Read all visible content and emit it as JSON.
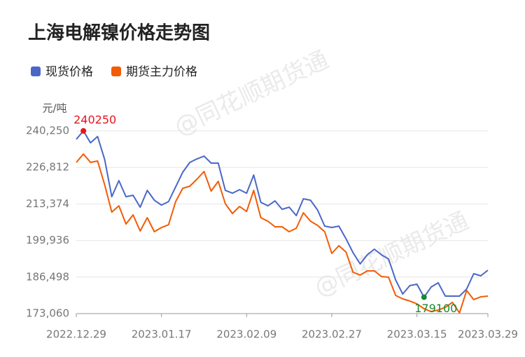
{
  "chart_data": {
    "type": "line",
    "title": "上海电解镍价格走势图",
    "y_unit": "元/吨",
    "watermark": "@同花顺期货通",
    "categories": [
      "2022.12.29",
      null,
      null,
      null,
      null,
      null,
      null,
      null,
      null,
      null,
      null,
      null,
      "2023.01.17",
      null,
      null,
      null,
      null,
      null,
      null,
      null,
      null,
      null,
      null,
      null,
      "2023.02.09",
      null,
      null,
      null,
      null,
      null,
      null,
      null,
      null,
      null,
      null,
      null,
      "2023.02.27",
      null,
      null,
      null,
      null,
      null,
      null,
      null,
      null,
      null,
      null,
      null,
      "2023.03.15",
      null,
      null,
      null,
      null,
      null,
      null,
      null,
      null,
      null,
      "2023.03.29"
    ],
    "series": [
      {
        "name": "现货价格",
        "color": "#4a67c8",
        "values": [
          237160,
          240250,
          235870,
          238190,
          229700,
          216050,
          221970,
          216050,
          216570,
          212190,
          218370,
          214760,
          212960,
          214250,
          219660,
          225060,
          228670,
          229950,
          230980,
          228410,
          228410,
          218370,
          217340,
          218630,
          217340,
          224030,
          213990,
          212700,
          214510,
          211420,
          212190,
          209100,
          215280,
          214760,
          211160,
          205240,
          204720,
          205240,
          200610,
          195460,
          191340,
          194680,
          196740,
          194680,
          193140,
          185420,
          180260,
          183360,
          183870,
          179100,
          182840,
          184390,
          179490,
          179490,
          179490,
          182070,
          187730,
          186960,
          189020
        ]
      },
      {
        "name": "期货主力价格",
        "color": "#f25c05",
        "values": [
          228670,
          231750,
          228670,
          229180,
          220430,
          210390,
          212700,
          206010,
          209360,
          203440,
          208330,
          203180,
          204720,
          205750,
          214250,
          219140,
          219910,
          222490,
          225320,
          218110,
          221710,
          213480,
          209870,
          212450,
          210640,
          218370,
          208330,
          207040,
          204980,
          204980,
          203180,
          204470,
          210130,
          207040,
          205500,
          203180,
          195200,
          198030,
          195720,
          188250,
          187220,
          188770,
          188770,
          186700,
          186450,
          179750,
          178460,
          177690,
          176660,
          174860,
          173830,
          174350,
          175370,
          177180,
          173320,
          181550,
          178210,
          179230,
          179490
        ]
      }
    ],
    "ylim": [
      173060,
      240250
    ],
    "yticks": [
      {
        "value": 173060,
        "label": "173,060"
      },
      {
        "value": 186498,
        "label": "186,498"
      },
      {
        "value": 199936,
        "label": "199,936"
      },
      {
        "value": 213374,
        "label": "213,374"
      },
      {
        "value": 226812,
        "label": "226,812"
      },
      {
        "value": 240250,
        "label": "240,250"
      }
    ],
    "grid": true,
    "max_color": "#e8141e",
    "min_color": "#1a8a2e"
  }
}
